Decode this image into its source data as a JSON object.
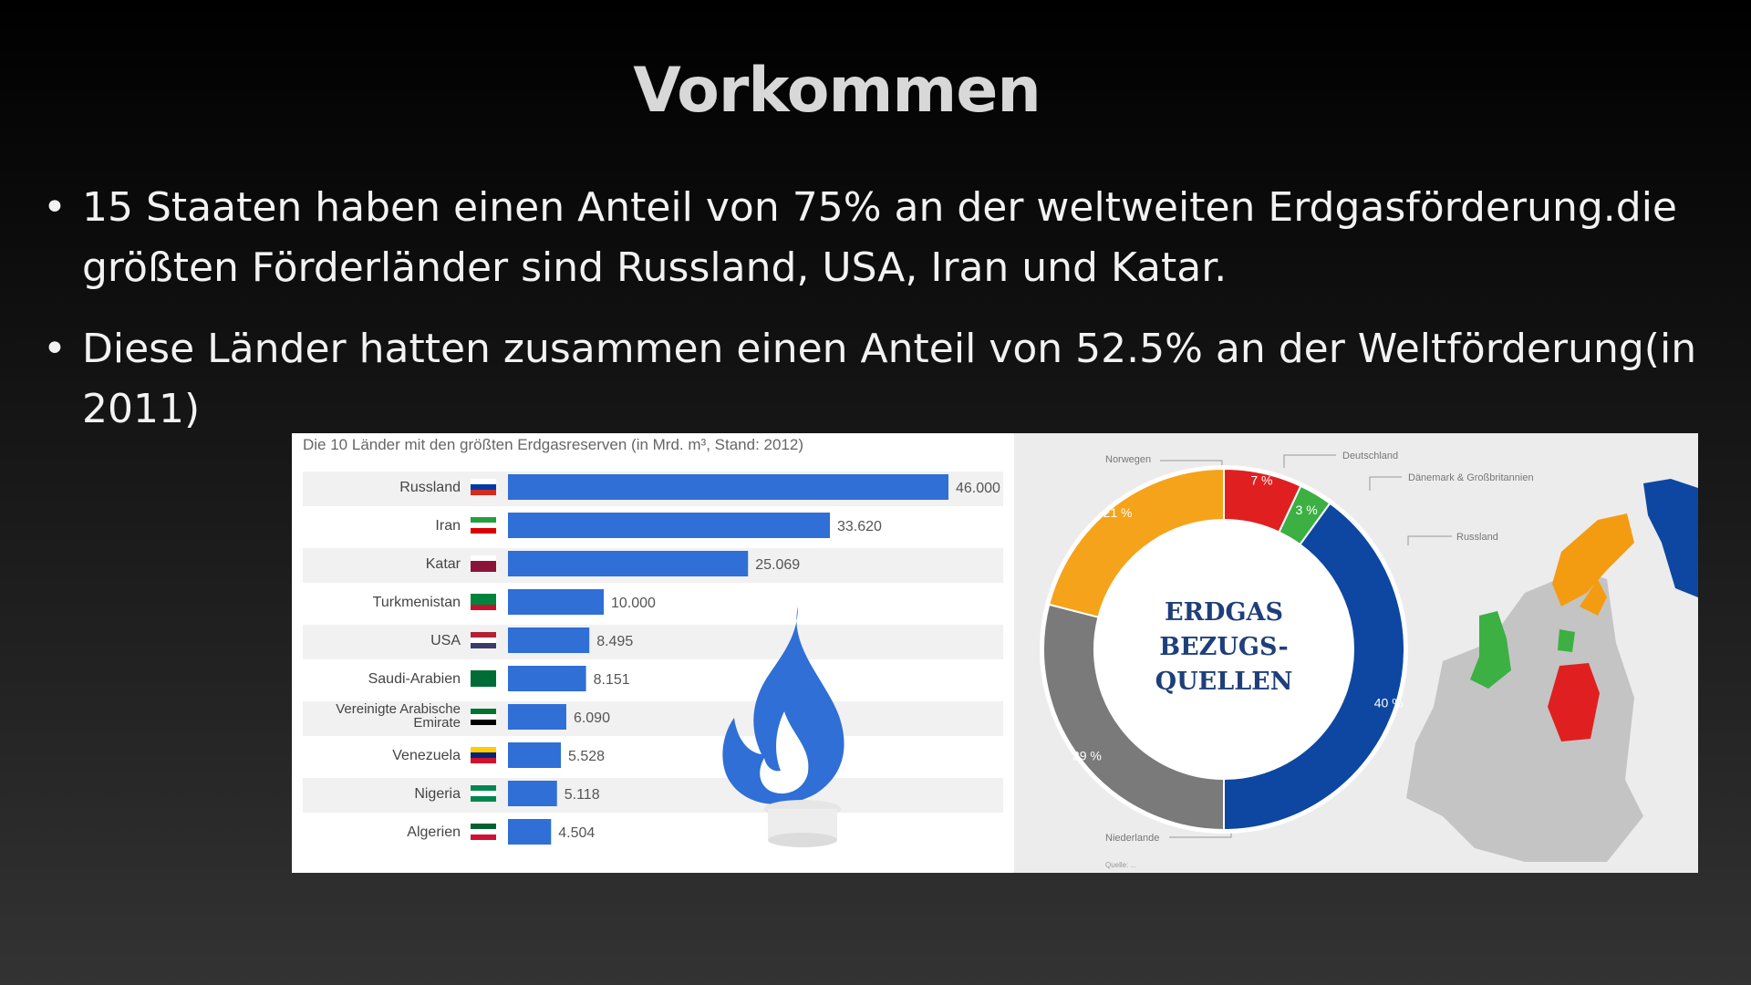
{
  "slide": {
    "title": "Vorkommen",
    "bullets": [
      "15 Staaten haben einen Anteil von 75% an der weltweiten Erdgasförderung.die größten Förderländer sind Russland, USA, Iran und Katar.",
      "Diese Länder hatten zusammen einen Anteil von 52.5% an der Weltförderung(in 2011)"
    ]
  },
  "chart_data": [
    {
      "type": "bar",
      "orientation": "horizontal",
      "title": "Die 10 Länder mit den größten Erdgasreserven (in Mrd. m³, Stand: 2012)",
      "categories": [
        "Russland",
        "Iran",
        "Katar",
        "Turkmenistan",
        "USA",
        "Saudi-Arabien",
        "Vereinigte Arabische Emirate",
        "Venezuela",
        "Nigeria",
        "Algerien"
      ],
      "values": [
        46000,
        33620,
        25069,
        10000,
        8495,
        8151,
        6090,
        5528,
        5118,
        4504
      ],
      "value_labels": [
        "46.000",
        "33.620",
        "25.069",
        "10.000",
        "8.495",
        "8.151",
        "6.090",
        "5.528",
        "5.118",
        "4.504"
      ],
      "xlim": [
        0,
        46000
      ],
      "bar_color": "#2f6fd6",
      "decoration": "blue-gas-flame-icon"
    },
    {
      "type": "pie",
      "style": "donut",
      "center_label": [
        "ERDGAS",
        "BEZUGS-",
        "QUELLEN"
      ],
      "slices": [
        {
          "name": "Deutschland",
          "value": 7,
          "label": "7 %",
          "color": "#e02020"
        },
        {
          "name": "Dänemark & Großbritannien",
          "value": 3,
          "label": "3 %",
          "color": "#3cb043"
        },
        {
          "name": "Russland",
          "value": 40,
          "label": "40 %",
          "color": "#0d47a1"
        },
        {
          "name": "Niederlande",
          "value": 29,
          "label": "29 %",
          "color": "#7a7a7a"
        },
        {
          "name": "Norwegen",
          "value": 21,
          "label": "21 %",
          "color": "#f5a31a"
        }
      ],
      "source": "Quelle: ..."
    }
  ]
}
